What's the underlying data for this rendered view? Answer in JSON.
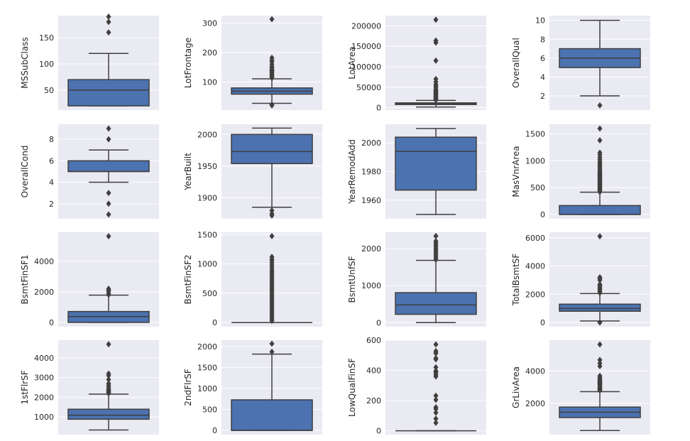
{
  "chart_data": [
    {
      "type": "box",
      "ylabel": "MSSubClass",
      "ylim": [
        12,
        192
      ],
      "yticks": [
        50,
        100,
        150
      ],
      "whisker_low": 20,
      "q1": 20,
      "median": 50,
      "q3": 70,
      "whisker_high": 120,
      "outliers": [
        160,
        180,
        190
      ]
    },
    {
      "type": "box",
      "ylabel": "LotFrontage",
      "ylim": [
        5,
        325
      ],
      "yticks": [
        100,
        200,
        300
      ],
      "whisker_low": 28,
      "q1": 59,
      "median": 69,
      "q3": 80,
      "whisker_high": 111,
      "outliers": [
        21,
        24,
        114,
        118,
        122,
        126,
        130,
        134,
        138,
        141,
        144,
        149,
        152,
        160,
        168,
        174,
        182,
        313
      ]
    },
    {
      "type": "box",
      "ylabel": "LotArea",
      "ylim": [
        -6000,
        225000
      ],
      "yticks": [
        0,
        50000,
        100000,
        150000,
        200000
      ],
      "whisker_low": 1300,
      "q1": 7550,
      "median": 9480,
      "q3": 11600,
      "whisker_high": 17700,
      "outliers": [
        18500,
        20000,
        22000,
        24000,
        26000,
        28000,
        30000,
        32000,
        34000,
        36000,
        38000,
        40000,
        42000,
        45000,
        50000,
        53000,
        57000,
        63000,
        70000,
        115000,
        159000,
        164000,
        215000
      ]
    },
    {
      "type": "box",
      "ylabel": "OverallQual",
      "ylim": [
        0.5,
        10.5
      ],
      "yticks": [
        2,
        4,
        6,
        8,
        10
      ],
      "whisker_low": 2,
      "q1": 5,
      "median": 6,
      "q3": 7,
      "whisker_high": 10,
      "outliers": [
        1
      ]
    },
    {
      "type": "box",
      "ylabel": "OverallCond",
      "ylim": [
        0.6,
        9.4
      ],
      "yticks": [
        2,
        4,
        6,
        8
      ],
      "whisker_low": 4,
      "q1": 5,
      "median": 5,
      "q3": 6,
      "whisker_high": 7,
      "outliers": [
        1,
        2,
        3,
        8,
        9
      ]
    },
    {
      "type": "box",
      "ylabel": "YearBuilt",
      "ylim": [
        1867,
        2016
      ],
      "yticks": [
        1900,
        1950,
        2000
      ],
      "whisker_low": 1885,
      "q1": 1954,
      "median": 1973,
      "q3": 2000,
      "whisker_high": 2010,
      "outliers": [
        1872,
        1875,
        1880
      ]
    },
    {
      "type": "box",
      "ylabel": "YearRemodAdd",
      "ylim": [
        1947,
        2013
      ],
      "yticks": [
        1960,
        1980,
        2000
      ],
      "whisker_low": 1950,
      "q1": 1967,
      "median": 1994,
      "q3": 2004,
      "whisker_high": 2010,
      "outliers": []
    },
    {
      "type": "box",
      "ylabel": "MasVnrArea",
      "ylim": [
        -80,
        1680
      ],
      "yticks": [
        0,
        500,
        1000,
        1500
      ],
      "whisker_low": 0,
      "q1": 0,
      "median": 0,
      "q3": 166,
      "whisker_high": 415,
      "outliers": [
        420,
        440,
        460,
        480,
        500,
        520,
        540,
        560,
        580,
        600,
        620,
        640,
        660,
        680,
        700,
        720,
        740,
        760,
        780,
        800,
        830,
        860,
        890,
        920,
        950,
        980,
        1020,
        1060,
        1110,
        1150,
        1380,
        1600
      ]
    },
    {
      "type": "box",
      "ylabel": "BsmtFinSF1",
      "ylim": [
        -280,
        5900
      ],
      "yticks": [
        0,
        2000,
        4000
      ],
      "whisker_low": 0,
      "q1": 0,
      "median": 383,
      "q3": 712,
      "whisker_high": 1780,
      "outliers": [
        1810,
        1900,
        2050,
        2100,
        2200,
        5640
      ]
    },
    {
      "type": "box",
      "ylabel": "BsmtFinSF2",
      "ylim": [
        -70,
        1540
      ],
      "yticks": [
        0,
        500,
        1000,
        1500
      ],
      "whisker_low": 0,
      "q1": 0,
      "median": 0,
      "q3": 0,
      "whisker_high": 0,
      "outliers": [
        30,
        60,
        90,
        120,
        150,
        180,
        210,
        240,
        270,
        300,
        330,
        360,
        390,
        420,
        450,
        480,
        510,
        540,
        570,
        600,
        630,
        660,
        690,
        720,
        750,
        780,
        810,
        840,
        870,
        900,
        940,
        980,
        1020,
        1060,
        1080,
        1120,
        1474
      ]
    },
    {
      "type": "box",
      "ylabel": "BsmtUnfSF",
      "ylim": [
        -110,
        2440
      ],
      "yticks": [
        0,
        1000,
        2000
      ],
      "whisker_low": 0,
      "q1": 223,
      "median": 477,
      "q3": 808,
      "whisker_high": 1680,
      "outliers": [
        1700,
        1750,
        1800,
        1850,
        1900,
        1950,
        2000,
        2050,
        2100,
        2150,
        2200,
        2336
      ]
    },
    {
      "type": "box",
      "ylabel": "TotalBsmtSF",
      "ylim": [
        -300,
        6400
      ],
      "yticks": [
        0,
        2000,
        4000,
        6000
      ],
      "whisker_low": 105,
      "q1": 796,
      "median": 991,
      "q3": 1298,
      "whisker_high": 2046,
      "outliers": [
        0,
        0,
        2100,
        2200,
        2300,
        2400,
        2500,
        2600,
        2700,
        3000,
        3100,
        3200,
        6110
      ]
    },
    {
      "type": "box",
      "ylabel": "1stFlrSF",
      "ylim": [
        100,
        4900
      ],
      "yticks": [
        1000,
        2000,
        3000,
        4000
      ],
      "whisker_low": 334,
      "q1": 882,
      "median": 1087,
      "q3": 1391,
      "whisker_high": 2158,
      "outliers": [
        2200,
        2250,
        2300,
        2350,
        2400,
        2500,
        2600,
        2700,
        2900,
        3100,
        3200,
        4692
      ]
    },
    {
      "type": "box",
      "ylabel": "2ndFlrSF",
      "ylim": [
        -100,
        2150
      ],
      "yticks": [
        0,
        500,
        1000,
        1500,
        2000
      ],
      "whisker_low": 0,
      "q1": 0,
      "median": 0,
      "q3": 728,
      "whisker_high": 1818,
      "outliers": [
        1872,
        2065
      ]
    },
    {
      "type": "box",
      "ylabel": "LowQualFinSF",
      "ylim": [
        -25,
        600
      ],
      "yticks": [
        0,
        200,
        400,
        600
      ],
      "whisker_low": 0,
      "q1": 0,
      "median": 0,
      "q3": 0,
      "whisker_high": 0,
      "outliers": [
        53,
        80,
        120,
        144,
        156,
        205,
        232,
        360,
        371,
        384,
        392,
        397,
        420,
        473,
        481,
        513,
        514,
        515,
        528,
        572
      ]
    },
    {
      "type": "box",
      "ylabel": "GrLivArea",
      "ylim": [
        80,
        5900
      ],
      "yticks": [
        2000,
        4000
      ],
      "whisker_low": 334,
      "q1": 1129,
      "median": 1464,
      "q3": 1776,
      "whisker_high": 2730,
      "outliers": [
        2800,
        2850,
        2900,
        2950,
        3000,
        3100,
        3150,
        3200,
        3250,
        3300,
        3350,
        3400,
        3450,
        3500,
        3600,
        3700,
        4300,
        4470,
        4680,
        5640
      ]
    }
  ]
}
